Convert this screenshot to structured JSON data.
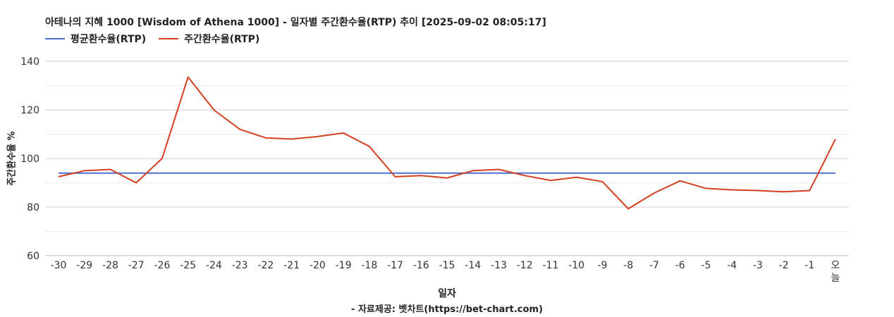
{
  "chart_data": {
    "type": "line",
    "title": "아테나의 지혜 1000 [Wisdom of Athena 1000] - 일자별 주간환수율(RTP) 추이 [2025-09-02 08:05:17]",
    "xlabel": "일자",
    "ylabel": "주간환수율 %",
    "source": "- 자료제공: 벳차트(https://bet-chart.com)",
    "ylim": [
      60,
      140
    ],
    "yticks": [
      "60",
      "80",
      "100",
      "120",
      "140"
    ],
    "grid": true,
    "legend_position": "top-left",
    "categories": [
      "-30",
      "-29",
      "-28",
      "-27",
      "-26",
      "-25",
      "-24",
      "-23",
      "-22",
      "-21",
      "-20",
      "-19",
      "-18",
      "-17",
      "-16",
      "-15",
      "-14",
      "-13",
      "-12",
      "-11",
      "-10",
      "-9",
      "-8",
      "-7",
      "-6",
      "-5",
      "-4",
      "-3",
      "-2",
      "-1",
      "오늘"
    ],
    "series": [
      {
        "name": "평균환수율(RTP)",
        "color": "#4a6fd1",
        "values": [
          94,
          94,
          94,
          94,
          94,
          94,
          94,
          94,
          94,
          94,
          94,
          94,
          94,
          94,
          94,
          94,
          94,
          94,
          94,
          94,
          94,
          94,
          94,
          94,
          94,
          94,
          94,
          94,
          94,
          94,
          94
        ]
      },
      {
        "name": "주간환수율(RTP)",
        "color": "#d4401f",
        "values": [
          92.5,
          95,
          95.5,
          90,
          100,
          133.5,
          120,
          112,
          108.5,
          108,
          109,
          110.5,
          105,
          92.5,
          93,
          92,
          95,
          95.5,
          93,
          91,
          92.3,
          90.5,
          79.3,
          85.8,
          90.8,
          87.7,
          87.1,
          86.8,
          86.3,
          86.8,
          108
        ]
      }
    ]
  }
}
